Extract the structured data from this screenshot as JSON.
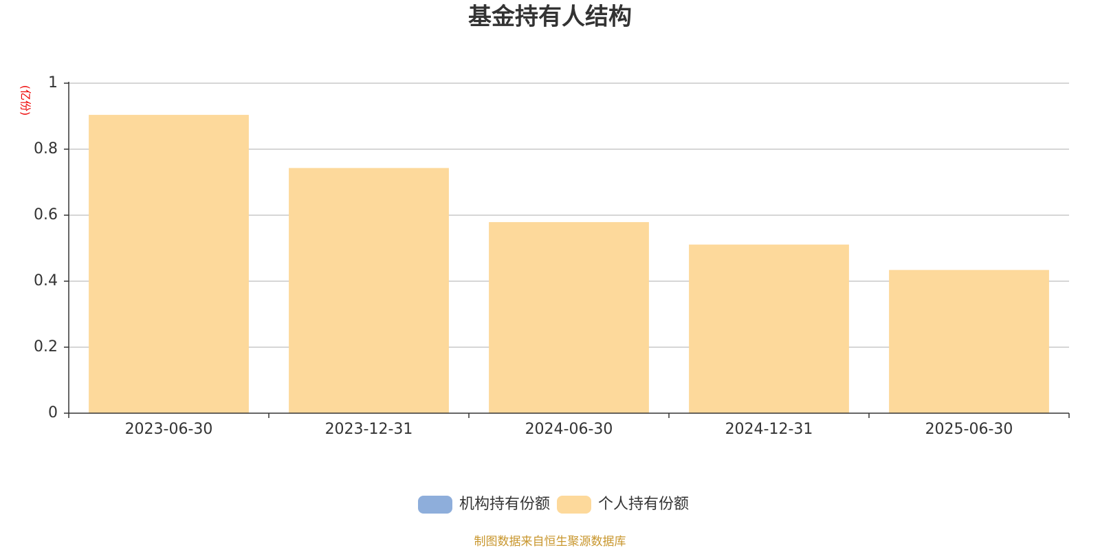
{
  "chart_data": {
    "type": "stacked_bar",
    "title": "基金持有人结构",
    "y_unit": "(亿份)",
    "categories": [
      "2023-06-30",
      "2023-12-31",
      "2024-06-30",
      "2024-12-31",
      "2025-06-30"
    ],
    "series": [
      {
        "name": "机构持有份额",
        "color": "#8eaedb",
        "values": [
          0,
          0,
          0,
          0,
          0
        ]
      },
      {
        "name": "个人持有份额",
        "color": "#fdd99b",
        "values": [
          0.904,
          0.743,
          0.579,
          0.511,
          0.434
        ]
      }
    ],
    "ylim": [
      0,
      1
    ],
    "yticks": [
      0,
      0.2,
      0.4,
      0.6,
      0.8,
      1
    ],
    "grid": true,
    "legend": "bottom",
    "source": "制图数据来自恒生聚源数据库"
  }
}
